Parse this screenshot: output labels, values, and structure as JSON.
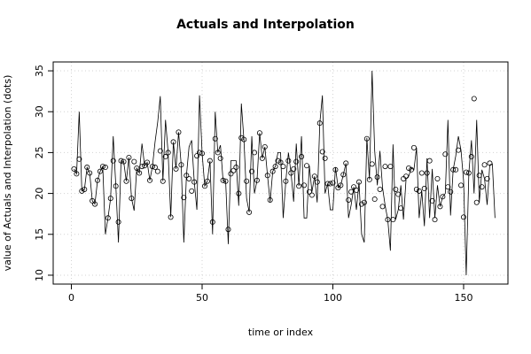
{
  "chart_data": {
    "type": "line",
    "title": "Actuals and Interpolation",
    "xlabel": "time or index",
    "ylabel": "value of Actuals and Interpolation (dots)",
    "xlim": [
      0,
      160
    ],
    "ylim": [
      10,
      35
    ],
    "xticks": [
      0,
      50,
      100,
      150
    ],
    "yticks": [
      10,
      15,
      20,
      25,
      30,
      35
    ],
    "grid": true,
    "series": [
      {
        "line_color": "#000000",
        "values": [
          23,
          22.4,
          30,
          20.3,
          20.5,
          23.2,
          22.5,
          19.1,
          18.7,
          21.6,
          22.7,
          23.3,
          15,
          17,
          19.4,
          27,
          20.9,
          14,
          24,
          23.9,
          21.5,
          24.4,
          19.4,
          17.9,
          23.1,
          22.5,
          26.1,
          23.4,
          23.8,
          21.6,
          23.3,
          26.3,
          28.7,
          31.9,
          21.5,
          29,
          25,
          17.1,
          26.3,
          23,
          27.5,
          23.5,
          14,
          22.2,
          25.7,
          26.5,
          21.4,
          18,
          32,
          24.9,
          20.9,
          21.5,
          24,
          15,
          30,
          25,
          25.9,
          21.6,
          21.5,
          13.8,
          24,
          24,
          24,
          18.5,
          31,
          26.5,
          19.4,
          17.7,
          27,
          20,
          21.6,
          27.4,
          24.3,
          25.7,
          22.2,
          19,
          22.7,
          23.3,
          25,
          25,
          17,
          21.5,
          25,
          22.5,
          19,
          26.1,
          20.9,
          27,
          17,
          17,
          23.4,
          20.2,
          22.1,
          18.9,
          28.6,
          32,
          20,
          21.2,
          18,
          18,
          23.2,
          20.7,
          21,
          22.3,
          23.7,
          17,
          18.6,
          20.8,
          18,
          21.4,
          15,
          14,
          26.8,
          21.7,
          35,
          25.2,
          21,
          25.2,
          20.7,
          18.5,
          16.8,
          13,
          26,
          16.8,
          18,
          21,
          16.8,
          21.8,
          22.1,
          23.1,
          22.9,
          25.6,
          17,
          20.3,
          16,
          24.3,
          17,
          23,
          17,
          21,
          18.4,
          19.6,
          20,
          29,
          17.3,
          22.9,
          24.6,
          27,
          25.3,
          21.5,
          10,
          22.5,
          26.5,
          20,
          29,
          18.9,
          22.9,
          21.8,
          18.6,
          23.5,
          23.6,
          17
        ],
        "dots": [
          [
            1,
            23
          ],
          [
            2,
            22.4
          ],
          [
            3,
            24.2
          ],
          [
            4,
            20.3
          ],
          [
            5,
            20.5
          ],
          [
            6,
            23.2
          ],
          [
            7,
            22.5
          ],
          [
            8,
            19.1
          ],
          [
            9,
            18.7
          ],
          [
            10,
            21.6
          ],
          [
            11,
            22.7
          ],
          [
            12,
            23.3
          ],
          [
            13,
            23.2
          ],
          [
            14,
            17
          ],
          [
            15,
            19.4
          ],
          [
            16,
            24
          ],
          [
            17,
            20.9
          ],
          [
            18,
            16.5
          ],
          [
            19,
            24
          ],
          [
            20,
            23.9
          ],
          [
            21,
            21.5
          ],
          [
            22,
            24.4
          ],
          [
            23,
            19.4
          ],
          [
            24,
            23.9
          ],
          [
            25,
            23.1
          ],
          [
            26,
            22.5
          ],
          [
            27,
            23.3
          ],
          [
            28,
            23.4
          ],
          [
            29,
            23.8
          ],
          [
            30,
            21.6
          ],
          [
            31,
            23.3
          ],
          [
            32,
            23.2
          ],
          [
            33,
            22.7
          ],
          [
            34,
            25.2
          ],
          [
            35,
            21.5
          ],
          [
            36,
            24.5
          ],
          [
            37,
            25
          ],
          [
            38,
            17.1
          ],
          [
            39,
            26.3
          ],
          [
            40,
            23
          ],
          [
            41,
            27.5
          ],
          [
            42,
            23.5
          ],
          [
            43,
            19.5
          ],
          [
            44,
            22.2
          ],
          [
            45,
            21.8
          ],
          [
            46,
            20.3
          ],
          [
            47,
            21.4
          ],
          [
            48,
            24.6
          ],
          [
            49,
            25
          ],
          [
            50,
            24.9
          ],
          [
            51,
            20.9
          ],
          [
            52,
            21.5
          ],
          [
            53,
            24
          ],
          [
            54,
            16.5
          ],
          [
            55,
            26.7
          ],
          [
            56,
            25
          ],
          [
            57,
            24.3
          ],
          [
            58,
            21.6
          ],
          [
            59,
            21.5
          ],
          [
            60,
            15.6
          ],
          [
            61,
            22.4
          ],
          [
            62,
            22.8
          ],
          [
            63,
            23.2
          ],
          [
            64,
            20
          ],
          [
            65,
            26.8
          ],
          [
            66,
            26.6
          ],
          [
            67,
            21.5
          ],
          [
            68,
            17.7
          ],
          [
            69,
            22.7
          ],
          [
            70,
            25
          ],
          [
            71,
            21.6
          ],
          [
            72,
            27.4
          ],
          [
            73,
            24.3
          ],
          [
            74,
            25.7
          ],
          [
            75,
            22.2
          ],
          [
            76,
            19.2
          ],
          [
            77,
            22.7
          ],
          [
            78,
            23.3
          ],
          [
            79,
            24
          ],
          [
            80,
            23.8
          ],
          [
            81,
            23.3
          ],
          [
            82,
            21.5
          ],
          [
            83,
            24
          ],
          [
            84,
            22.5
          ],
          [
            85,
            23
          ],
          [
            86,
            23.9
          ],
          [
            87,
            20.9
          ],
          [
            88,
            24.5
          ],
          [
            89,
            21
          ],
          [
            90,
            23.4
          ],
          [
            91,
            20.2
          ],
          [
            92,
            19.8
          ],
          [
            93,
            22.1
          ],
          [
            94,
            21.4
          ],
          [
            95,
            28.6
          ],
          [
            96,
            25.1
          ],
          [
            97,
            24.3
          ],
          [
            98,
            21.2
          ],
          [
            99,
            21.2
          ],
          [
            100,
            21.3
          ],
          [
            101,
            22.9
          ],
          [
            102,
            20.7
          ],
          [
            103,
            21
          ],
          [
            104,
            22.3
          ],
          [
            105,
            23.7
          ],
          [
            106,
            19.2
          ],
          [
            107,
            20.2
          ],
          [
            108,
            20.8
          ],
          [
            109,
            20.4
          ],
          [
            110,
            21.4
          ],
          [
            111,
            18.7
          ],
          [
            112,
            18.9
          ],
          [
            113,
            26.7
          ],
          [
            114,
            21.7
          ],
          [
            115,
            23.6
          ],
          [
            116,
            19.3
          ],
          [
            117,
            22
          ],
          [
            118,
            20.5
          ],
          [
            119,
            18.4
          ],
          [
            120,
            23.3
          ],
          [
            121,
            16.8
          ],
          [
            122,
            23.3
          ],
          [
            123,
            16.8
          ],
          [
            124,
            20.5
          ],
          [
            125,
            19.9
          ],
          [
            126,
            18.2
          ],
          [
            127,
            21.8
          ],
          [
            128,
            22.1
          ],
          [
            129,
            23.1
          ],
          [
            130,
            22.9
          ],
          [
            131,
            25.6
          ],
          [
            132,
            20.5
          ],
          [
            133,
            20.3
          ],
          [
            134,
            22.5
          ],
          [
            135,
            20.6
          ],
          [
            136,
            22.5
          ],
          [
            137,
            24
          ],
          [
            138,
            19.1
          ],
          [
            139,
            16.8
          ],
          [
            140,
            21.8
          ],
          [
            141,
            18.4
          ],
          [
            142,
            19.6
          ],
          [
            143,
            24.8
          ],
          [
            144,
            20.8
          ],
          [
            145,
            20.2
          ],
          [
            146,
            22.9
          ],
          [
            147,
            22.9
          ],
          [
            148,
            25.3
          ],
          [
            149,
            21
          ],
          [
            150,
            17.1
          ],
          [
            151,
            22.6
          ],
          [
            152,
            22.5
          ],
          [
            153,
            24.5
          ],
          [
            154,
            31.6
          ],
          [
            155,
            18.9
          ],
          [
            156,
            22.2
          ],
          [
            157,
            20.8
          ],
          [
            158,
            23.5
          ],
          [
            159,
            21.8
          ],
          [
            160,
            23.7
          ]
        ]
      }
    ]
  }
}
